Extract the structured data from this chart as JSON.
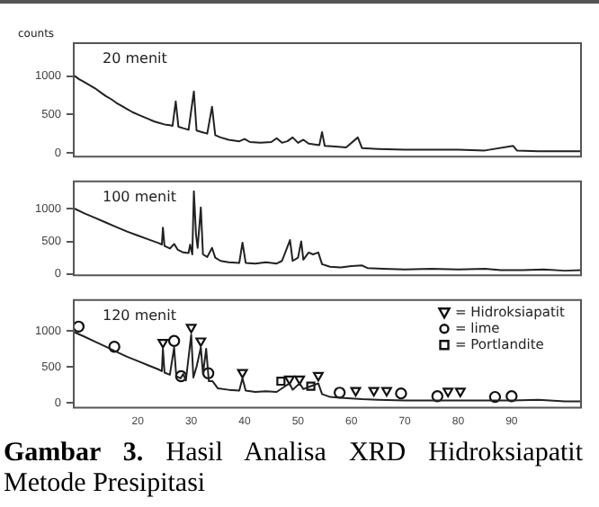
{
  "chart_data": [
    {
      "type": "line",
      "ylabel": "counts",
      "annotations": [
        "20 menit"
      ],
      "xlim": [
        8,
        103
      ],
      "xticks": [
        20,
        30,
        40,
        50,
        60,
        70,
        80,
        90
      ],
      "ylim": [
        -50,
        1430
      ],
      "yticks": [
        0,
        500,
        1000
      ],
      "tick_labels": "y",
      "series": [
        {
          "type": "line",
          "color": "#222222",
          "x": [
            8.2,
            9,
            10,
            11,
            12,
            13,
            14,
            15,
            16,
            17,
            18,
            19,
            20,
            21,
            22,
            23,
            24,
            25,
            26,
            26.5,
            27.1,
            27.6,
            28.5,
            29.5,
            30.5,
            31,
            32,
            33,
            33.9,
            34.5,
            35.5,
            37,
            39,
            40,
            41,
            43,
            45,
            46,
            47,
            48,
            49,
            50,
            51,
            52,
            54,
            54.5,
            55,
            57,
            59,
            61.2,
            62,
            65,
            70,
            75,
            80,
            85,
            90.3,
            91,
            95,
            100,
            103
          ],
          "values": [
            1000,
            960,
            920,
            880,
            840,
            790,
            740,
            700,
            650,
            610,
            570,
            530,
            500,
            470,
            440,
            410,
            390,
            370,
            360,
            350,
            670,
            340,
            320,
            300,
            800,
            290,
            270,
            250,
            600,
            230,
            200,
            170,
            150,
            180,
            140,
            130,
            140,
            190,
            130,
            150,
            200,
            130,
            170,
            120,
            100,
            270,
            90,
            80,
            70,
            200,
            60,
            50,
            40,
            40,
            40,
            30,
            90,
            30,
            20,
            20,
            20
          ]
        }
      ]
    },
    {
      "type": "line",
      "annotations": [
        "100 menit"
      ],
      "xlim": [
        8,
        103
      ],
      "xticks": [
        20,
        30,
        40,
        50,
        60,
        70,
        80,
        90
      ],
      "ylim": [
        -20,
        1420
      ],
      "yticks": [
        0,
        500,
        1000
      ],
      "tick_labels": "y",
      "series": [
        {
          "type": "line",
          "color": "#222222",
          "x": [
            8.2,
            10,
            12,
            14,
            16,
            18,
            20,
            22,
            24,
            24.5,
            24.7,
            25,
            26,
            26.8,
            27.5,
            28.5,
            29.5,
            29.8,
            30.2,
            30.5,
            30.9,
            31.2,
            31.8,
            32.2,
            33,
            33.9,
            34.5,
            35.5,
            37,
            39,
            39.6,
            40.2,
            42,
            44,
            46,
            47,
            48.5,
            49,
            50,
            50.6,
            51,
            52,
            52.8,
            53.8,
            54.5,
            56,
            58,
            60,
            62,
            63,
            66,
            70,
            75,
            80,
            85,
            88,
            92,
            96,
            100,
            103
          ],
          "values": [
            1000,
            930,
            860,
            790,
            720,
            650,
            590,
            530,
            470,
            450,
            710,
            430,
            390,
            460,
            370,
            330,
            320,
            450,
            300,
            1270,
            600,
            400,
            1020,
            300,
            260,
            400,
            250,
            200,
            180,
            170,
            480,
            170,
            160,
            180,
            160,
            200,
            520,
            200,
            250,
            500,
            220,
            330,
            300,
            330,
            150,
            110,
            100,
            120,
            130,
            90,
            80,
            70,
            80,
            70,
            80,
            60,
            60,
            70,
            50,
            60
          ]
        }
      ]
    },
    {
      "type": "line",
      "annotations": [
        "120 menit",
        "Gambar 3. Hasil Analisa XRD Hidroksiapatit Metode Presipitasi"
      ],
      "xlim": [
        8,
        103
      ],
      "xticks": [
        20,
        30,
        40,
        50,
        60,
        70,
        80,
        90
      ],
      "ylim": [
        -70,
        1430
      ],
      "yticks": [
        0,
        500,
        1000
      ],
      "legend": "top right",
      "series": [
        {
          "type": "line",
          "color": "#222222",
          "x": [
            8.2,
            10,
            12,
            14,
            16,
            18,
            20,
            22,
            24,
            24.5,
            24.7,
            25,
            26,
            26.8,
            27.2,
            28,
            28.5,
            29,
            30,
            30.4,
            31,
            31.8,
            32.2,
            32.8,
            33.3,
            34,
            35,
            37,
            39,
            39.6,
            40.2,
            42,
            44,
            46,
            47,
            48.4,
            49,
            50.3,
            51,
            52,
            53.8,
            54.5,
            56,
            58,
            60,
            62,
            65,
            70,
            75,
            80,
            85,
            90,
            95,
            100,
            103
          ],
          "values": [
            980,
            920,
            850,
            780,
            710,
            640,
            580,
            520,
            460,
            440,
            750,
            420,
            390,
            770,
            370,
            340,
            400,
            310,
            950,
            350,
            500,
            770,
            400,
            750,
            300,
            300,
            200,
            180,
            170,
            340,
            170,
            150,
            160,
            150,
            200,
            270,
            180,
            270,
            190,
            220,
            270,
            120,
            80,
            70,
            60,
            50,
            40,
            30,
            30,
            30,
            30,
            30,
            40,
            20,
            20
          ]
        },
        {
          "type": "scatter",
          "name": "= Hidroksiapatit",
          "marker": "triangle",
          "color": "#111111",
          "x": [
            24.7,
            30.0,
            31.8,
            39.6,
            48.4,
            50.3,
            53.8,
            60.8,
            64.2,
            66.6,
            78.1,
            80.4
          ],
          "values": [
            840,
            1050,
            860,
            420,
            330,
            330,
            380,
            170,
            170,
            170,
            160,
            160
          ]
        },
        {
          "type": "scatter",
          "name": "= lime",
          "marker": "circle",
          "color": "#111111",
          "x": [
            8.9,
            15.6,
            26.8,
            28.1,
            33.2,
            57.8,
            69.3,
            76.1,
            86.9,
            90.0
          ],
          "values": [
            1060,
            780,
            860,
            370,
            410,
            140,
            130,
            90,
            80,
            90
          ]
        },
        {
          "type": "scatter",
          "name": "= Portlandite",
          "marker": "square",
          "color": "#111111",
          "x": [
            46.8,
            52.4
          ],
          "values": [
            300,
            230
          ]
        }
      ]
    }
  ]
}
